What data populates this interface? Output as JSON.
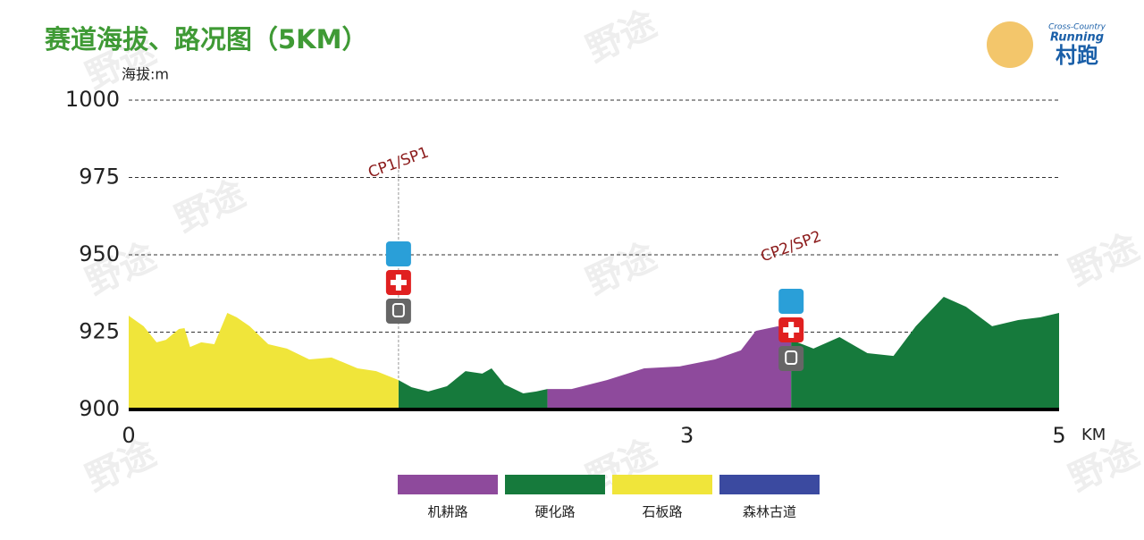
{
  "chart_data": {
    "type": "area",
    "title": "赛道海拔、路况图（5KM）",
    "y_label": "海拔:m",
    "x_label": "KM",
    "xlim": [
      0,
      5
    ],
    "xticks": [
      0,
      3,
      5
    ],
    "ylim": [
      900,
      1000
    ],
    "yticks": [
      900,
      925,
      950,
      975,
      1000
    ],
    "grid": true,
    "series": [
      {
        "name": "机耕路",
        "color": "#8e4a9c",
        "x": [
          2.25,
          2.38,
          2.57,
          2.77,
          2.96,
          3.15,
          3.29,
          3.37,
          3.49,
          3.56
        ],
        "values": [
          906.6,
          906.6,
          909.5,
          913.3,
          913.9,
          916.2,
          919.1,
          925.4,
          926.9,
          922.5
        ]
      },
      {
        "name": "硬化路",
        "color": "#167a3c",
        "x": [
          1.45,
          1.52,
          1.61,
          1.71,
          1.81,
          1.9,
          1.95,
          2.02,
          2.12,
          2.19,
          2.25,
          null,
          3.56,
          3.68,
          3.82,
          3.97,
          4.11,
          4.23,
          4.38,
          4.5,
          4.64,
          4.78,
          4.9,
          5
        ],
        "values": [
          909.5,
          907.2,
          905.8,
          907.5,
          912.4,
          911.6,
          913.3,
          908.1,
          905.2,
          905.8,
          906.6,
          null,
          922.5,
          919.7,
          923.4,
          918.2,
          917.3,
          926.9,
          936.4,
          933.2,
          926.9,
          928.9,
          929.8,
          931.2
        ]
      },
      {
        "name": "石板路",
        "color": "#f0e53a",
        "x": [
          0,
          0.08,
          0.15,
          0.2,
          0.27,
          0.3,
          0.33,
          0.39,
          0.46,
          0.53,
          0.58,
          0.65,
          0.75,
          0.85,
          0.97,
          1.09,
          1.23,
          1.33,
          1.45
        ],
        "values": [
          930.3,
          926.9,
          921.7,
          922.5,
          926,
          926.3,
          920.2,
          921.7,
          921.1,
          931.2,
          929.8,
          926.9,
          921.1,
          919.7,
          916.2,
          916.8,
          913.3,
          912.4,
          909.5
        ]
      },
      {
        "name": "森林古道",
        "color": "#3b4aa0",
        "x": [],
        "values": []
      }
    ],
    "annotations": [
      {
        "text": "CP1/SP1",
        "x": 1.45
      },
      {
        "text": "CP2/SP2",
        "x": 3.56
      }
    ],
    "logo": {
      "line1": "Cross-Country",
      "line2": "Running",
      "line3": "村跑"
    },
    "watermark": "野途"
  }
}
